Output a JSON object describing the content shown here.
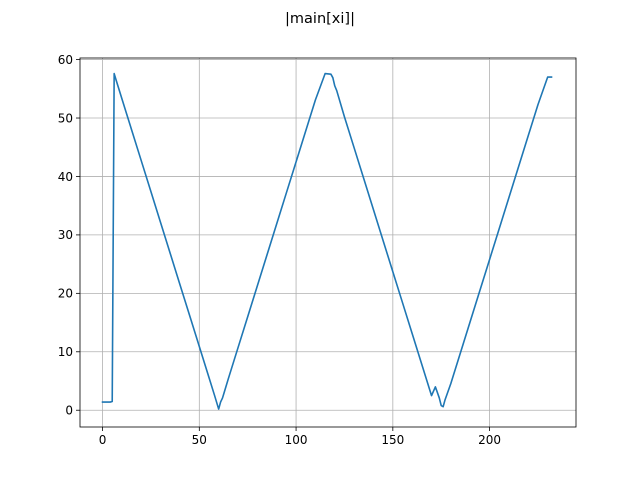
{
  "chart_data": {
    "type": "line",
    "title": "|main[xi]|",
    "xlabel": "",
    "ylabel": "",
    "xlim": [
      -11.65,
      244.65
    ],
    "ylim": [
      -2.87,
      60.27
    ],
    "grid": true,
    "x_ticks": [
      0,
      50,
      100,
      150,
      200
    ],
    "x_tick_labels": [
      "0",
      "50",
      "100",
      "150",
      "200"
    ],
    "y_ticks": [
      0,
      10,
      20,
      30,
      40,
      50,
      60
    ],
    "y_tick_labels": [
      "0",
      "10",
      "20",
      "30",
      "40",
      "50",
      "60"
    ],
    "series": [
      {
        "color": "#1f77b4",
        "x": [
          0,
          1,
          2,
          3,
          4,
          5,
          6,
          7,
          10,
          15,
          20,
          25,
          30,
          35,
          40,
          45,
          50,
          55,
          58,
          60,
          61,
          62,
          63,
          65,
          70,
          75,
          80,
          85,
          90,
          95,
          100,
          105,
          110,
          115,
          118,
          119,
          120,
          121,
          125,
          130,
          135,
          140,
          145,
          150,
          155,
          160,
          165,
          170,
          172,
          174,
          175,
          176,
          177,
          180,
          185,
          190,
          195,
          200,
          205,
          210,
          215,
          220,
          225,
          230,
          232
        ],
        "values": [
          1.4,
          1.4,
          1.4,
          1.4,
          1.4,
          1.5,
          57.6,
          56.5,
          53.3,
          48.0,
          42.7,
          37.4,
          32.1,
          26.8,
          21.5,
          16.2,
          10.9,
          5.6,
          2.4,
          0.2,
          1.4,
          2.1,
          3.2,
          5.4,
          10.7,
          16.0,
          21.3,
          26.6,
          31.9,
          37.2,
          42.5,
          47.8,
          53.1,
          57.6,
          57.5,
          56.9,
          55.5,
          54.7,
          50.2,
          44.9,
          39.6,
          34.3,
          29.0,
          23.7,
          18.4,
          13.1,
          7.8,
          2.5,
          4.0,
          2.1,
          0.8,
          0.6,
          1.8,
          4.6,
          9.9,
          15.2,
          20.5,
          25.8,
          31.1,
          36.4,
          41.7,
          47.0,
          52.3,
          57.0,
          57.0
        ]
      }
    ]
  }
}
